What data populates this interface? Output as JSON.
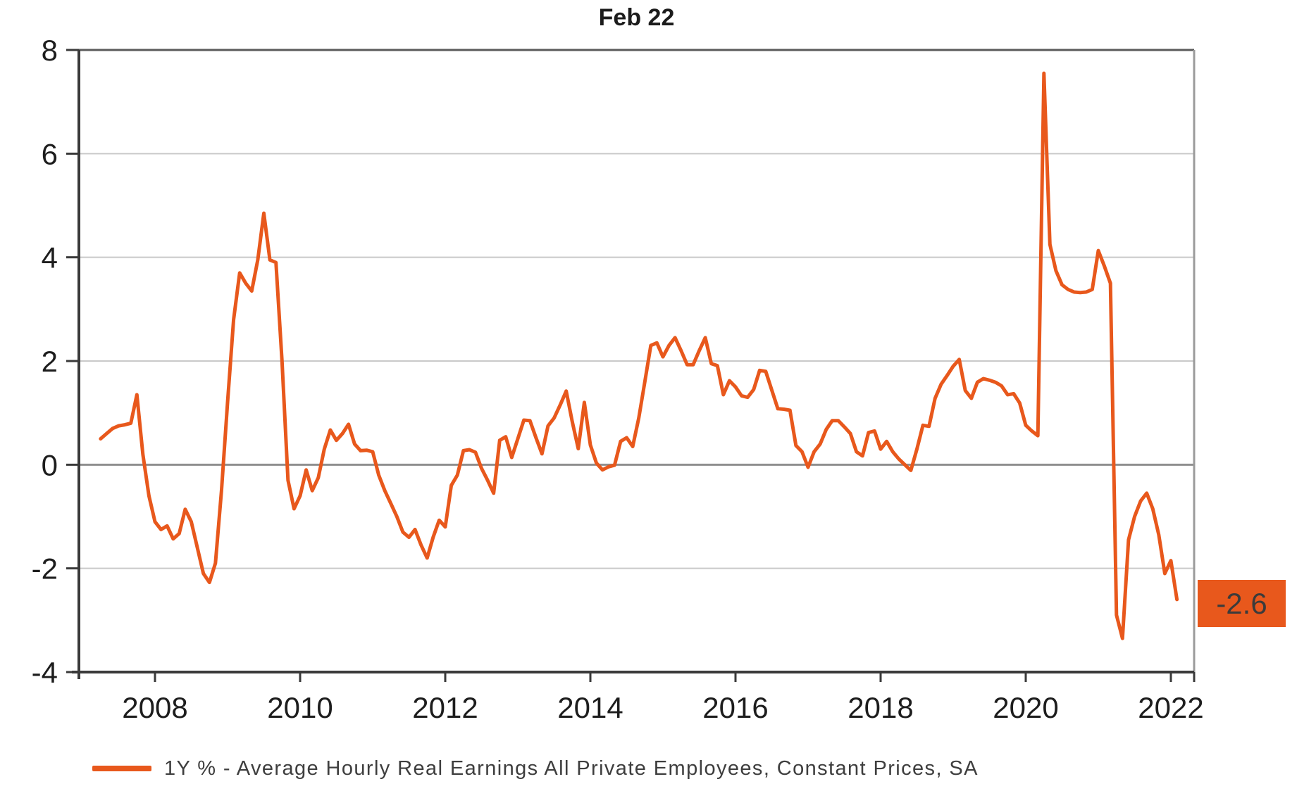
{
  "title": "Feb 22",
  "annotation": {
    "label": "-2.6",
    "value": -2.6
  },
  "legend": {
    "series_label": "1Y % - Average Hourly Real Earnings All Private Employees, Constant Prices, SA"
  },
  "colors": {
    "line": "#E8581C",
    "badge_bg": "#E8581C",
    "badge_text": "#3B3B3B",
    "grid": "#C9C9C9",
    "zero_line": "#8F8F8F",
    "axis": "#3A3A3A",
    "frame_top": "#5A5A5A",
    "frame_right": "#9B9B9B",
    "tick_label": "#1D1D1D",
    "background": "#FFFFFF"
  },
  "chart_data": {
    "type": "line",
    "title": "Feb 22",
    "grid": "horizontal",
    "legend_position": "bottom-left",
    "x_axis": {
      "tick_years": [
        2008,
        2010,
        2012,
        2014,
        2016,
        2018,
        2020,
        2022
      ],
      "tick_labels": [
        "2008",
        "2010",
        "2012",
        "2014",
        "2016",
        "2018",
        "2020",
        "2022"
      ],
      "range_years": [
        2006.95,
        2022.33
      ]
    },
    "y_axis": {
      "ticks": [
        8,
        6,
        4,
        2,
        0,
        -2,
        -4
      ],
      "tick_labels": [
        "8",
        "6",
        "4",
        "2",
        "0",
        "-2",
        "-4"
      ],
      "range": [
        -4,
        8
      ],
      "unit": "percent"
    },
    "series": [
      {
        "name": "1Y % - Average Hourly Real Earnings All Private Employees, Constant Prices, SA",
        "color": "#E8581C",
        "frequency": "monthly",
        "start_year": 2007,
        "start_month": 4,
        "end_label": "Feb 22",
        "last_value": -2.6,
        "values": [
          0.5,
          0.6,
          0.7,
          0.75,
          0.77,
          0.8,
          1.35,
          0.2,
          -0.6,
          -1.1,
          -1.25,
          -1.18,
          -1.43,
          -1.33,
          -0.86,
          -1.1,
          -1.6,
          -2.1,
          -2.27,
          -1.9,
          -0.5,
          1.2,
          2.8,
          3.7,
          3.5,
          3.35,
          3.95,
          4.85,
          3.95,
          3.9,
          2.0,
          -0.3,
          -0.85,
          -0.6,
          -0.1,
          -0.5,
          -0.25,
          0.3,
          0.67,
          0.47,
          0.6,
          0.78,
          0.4,
          0.27,
          0.28,
          0.25,
          -0.2,
          -0.5,
          -0.75,
          -1.0,
          -1.3,
          -1.4,
          -1.25,
          -1.55,
          -1.8,
          -1.4,
          -1.07,
          -1.2,
          -0.4,
          -0.2,
          0.27,
          0.29,
          0.24,
          -0.07,
          -0.3,
          -0.55,
          0.47,
          0.54,
          0.14,
          0.5,
          0.86,
          0.85,
          0.52,
          0.21,
          0.75,
          0.9,
          1.15,
          1.42,
          0.83,
          0.31,
          1.2,
          0.38,
          0.03,
          -0.1,
          -0.04,
          -0.01,
          0.45,
          0.52,
          0.35,
          0.9,
          1.6,
          2.3,
          2.35,
          2.08,
          2.3,
          2.45,
          2.2,
          1.93,
          1.93,
          2.2,
          2.45,
          1.95,
          1.91,
          1.35,
          1.62,
          1.5,
          1.33,
          1.3,
          1.45,
          1.82,
          1.8,
          1.44,
          1.08,
          1.07,
          1.05,
          0.37,
          0.25,
          -0.05,
          0.25,
          0.4,
          0.68,
          0.85,
          0.85,
          0.73,
          0.6,
          0.25,
          0.17,
          0.62,
          0.65,
          0.3,
          0.45,
          0.25,
          0.11,
          0.0,
          -0.11,
          0.3,
          0.76,
          0.74,
          1.28,
          1.55,
          1.72,
          1.9,
          2.03,
          1.43,
          1.28,
          1.59,
          1.66,
          1.63,
          1.59,
          1.52,
          1.35,
          1.37,
          1.19,
          0.76,
          0.65,
          0.56,
          7.55,
          4.25,
          3.74,
          3.47,
          3.38,
          3.33,
          3.32,
          3.33,
          3.38,
          4.13,
          3.83,
          3.5,
          -2.9,
          -3.35,
          -1.45,
          -1.0,
          -0.7,
          -0.55,
          -0.85,
          -1.35,
          -2.1,
          -1.85,
          -2.6
        ]
      }
    ],
    "annotation": {
      "text": "-2.6",
      "value": -2.6,
      "position": "right-of-plot-at-last-value"
    }
  }
}
